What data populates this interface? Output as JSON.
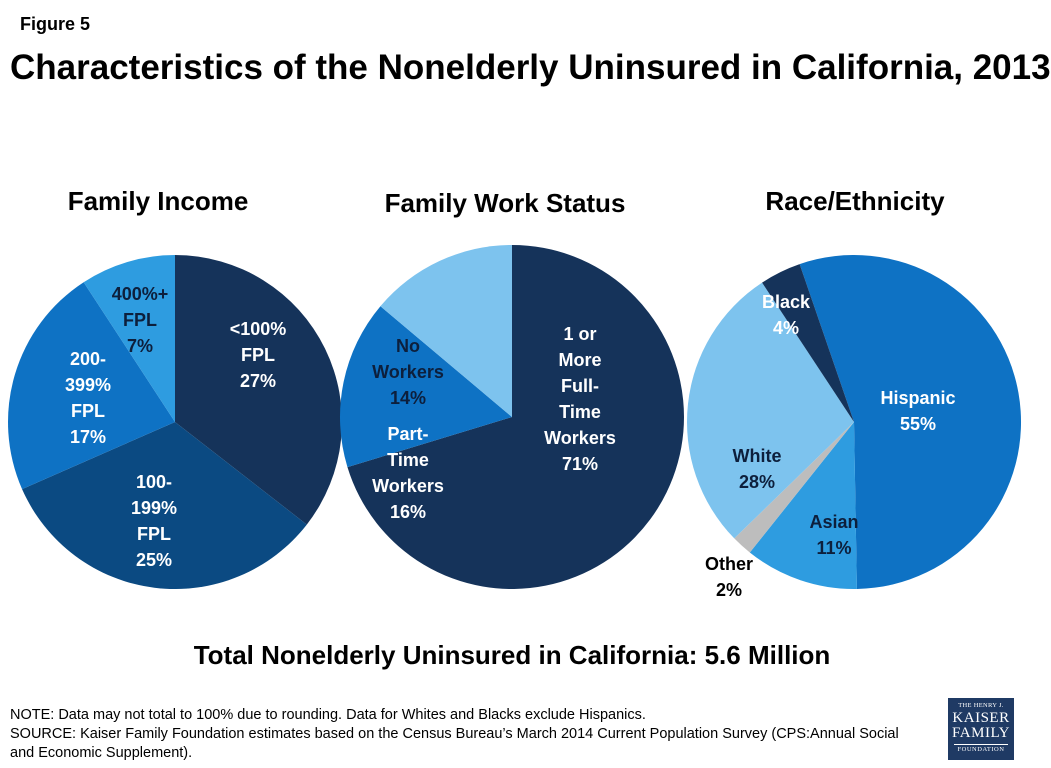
{
  "figure_label": "Figure 5",
  "title": "Characteristics of the Nonelderly Uninsured in California, 2013",
  "total_text": "Total Nonelderly Uninsured in California: 5.6 Million",
  "note": "NOTE: Data may not total to 100% due to rounding. Data for Whites and Blacks exclude Hispanics.",
  "source": "SOURCE: Kaiser Family Foundation estimates based on the Census Bureau’s March 2014 Current Population Survey (CPS:Annual Social and Economic Supplement).",
  "logo": {
    "line1": "THE HENRY J.",
    "line2": "KAISER",
    "line3": "FAMILY",
    "line4": "FOUNDATION"
  },
  "chart_data": [
    {
      "type": "pie",
      "title": "Family Income",
      "slices": [
        {
          "label": [
            "<100%",
            "FPL"
          ],
          "value": 27,
          "value_label": "27%",
          "color": "#15335a",
          "text_color": "#ffffff"
        },
        {
          "label": [
            "100-",
            "199%",
            "FPL"
          ],
          "value": 25,
          "value_label": "25%",
          "color": "#0b4a82",
          "text_color": "#ffffff"
        },
        {
          "label": [
            "200-",
            "399%",
            "FPL"
          ],
          "value": 17,
          "value_label": "17%",
          "color": "#0e72c4",
          "text_color": "#ffffff"
        },
        {
          "label": [
            "400%+",
            "FPL"
          ],
          "value": 7,
          "value_label": "7%",
          "color": "#2e9ce0",
          "text_color": "#0d1f3c"
        }
      ]
    },
    {
      "type": "pie",
      "title": "Family Work Status",
      "slices": [
        {
          "label": [
            "1 or",
            "More",
            "Full-",
            "Time",
            "Workers"
          ],
          "value": 71,
          "value_label": "71%",
          "color": "#15335a",
          "text_color": "#ffffff"
        },
        {
          "label": [
            "Part-",
            "Time",
            "Workers"
          ],
          "value": 16,
          "value_label": "16%",
          "color": "#0e72c4",
          "text_color": "#ffffff"
        },
        {
          "label": [
            "No",
            "Workers"
          ],
          "value": 14,
          "value_label": "14%",
          "color": "#7dc3ee",
          "text_color": "#0d1f3c"
        }
      ]
    },
    {
      "type": "pie",
      "title": "Race/Ethnicity",
      "slices": [
        {
          "label": [
            "Hispanic"
          ],
          "value": 55,
          "value_label": "55%",
          "color": "#0e72c4",
          "text_color": "#ffffff"
        },
        {
          "label": [
            "Asian"
          ],
          "value": 11,
          "value_label": "11%",
          "color": "#2e9ce0",
          "text_color": "#0d1f3c"
        },
        {
          "label": [
            "Other"
          ],
          "value": 2,
          "value_label": "2%",
          "color": "#bdbdbd",
          "text_color": "#000000"
        },
        {
          "label": [
            "White"
          ],
          "value": 28,
          "value_label": "28%",
          "color": "#7dc3ee",
          "text_color": "#0d1f3c"
        },
        {
          "label": [
            "Black"
          ],
          "value": 4,
          "value_label": "4%",
          "color": "#15335a",
          "text_color": "#ffffff"
        }
      ]
    }
  ]
}
